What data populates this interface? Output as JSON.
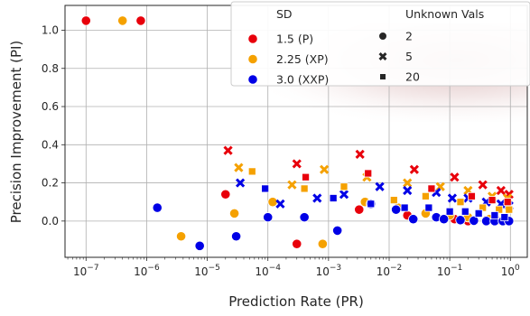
{
  "chart_data": {
    "type": "scatter",
    "xlabel": "Prediction Rate (PR)",
    "ylabel": "Precision Improvement (PI)",
    "xscale": "log",
    "xlim": [
      4.5e-08,
      1.9
    ],
    "ylim": [
      -0.19,
      1.13
    ],
    "x_ticks": [
      {
        "value": 1e-07,
        "base": "10",
        "exp": "−7"
      },
      {
        "value": 1e-06,
        "base": "10",
        "exp": "−6"
      },
      {
        "value": 1e-05,
        "base": "10",
        "exp": "−5"
      },
      {
        "value": 0.0001,
        "base": "10",
        "exp": "−4"
      },
      {
        "value": 0.001,
        "base": "10",
        "exp": "−3"
      },
      {
        "value": 0.01,
        "base": "10",
        "exp": "−2"
      },
      {
        "value": 0.1,
        "base": "10",
        "exp": "−1"
      },
      {
        "value": 1,
        "base": "10",
        "exp": "0"
      }
    ],
    "y_ticks": [
      {
        "value": 0.0,
        "label": "0.0"
      },
      {
        "value": 0.2,
        "label": "0.2"
      },
      {
        "value": 0.4,
        "label": "0.4"
      },
      {
        "value": 0.6,
        "label": "0.6"
      },
      {
        "value": 0.8,
        "label": "0.8"
      },
      {
        "value": 1.0,
        "label": "1.0"
      }
    ],
    "grid": true,
    "legend": {
      "placement": "top-right",
      "hue_title": "SD",
      "style_title": "Unknown Vals",
      "hue_entries": [
        {
          "label": "1.5 (P)",
          "color": "#e8000b"
        },
        {
          "label": "2.25 (XP)",
          "color": "#f5a100"
        },
        {
          "label": "3.0 (XXP)",
          "color": "#0000e6"
        }
      ],
      "style_entries": [
        {
          "label": "2",
          "marker": "circle"
        },
        {
          "label": "5",
          "marker": "x"
        },
        {
          "label": "20",
          "marker": "square"
        }
      ]
    },
    "series": [
      {
        "sd": "1.5 (P)",
        "unknown": "2",
        "color": "#e8000b",
        "marker": "circle",
        "points": [
          [
            1e-07,
            1.05
          ],
          [
            8e-07,
            1.05
          ],
          [
            2e-05,
            0.14
          ],
          [
            0.0003,
            -0.12
          ],
          [
            0.0032,
            0.06
          ],
          [
            0.02,
            0.03
          ],
          [
            0.06,
            0.02
          ],
          [
            0.12,
            0.01
          ],
          [
            0.2,
            0.0
          ],
          [
            0.4,
            0.005
          ],
          [
            0.6,
            0.003
          ],
          [
            0.85,
            0.002
          ]
        ]
      },
      {
        "sd": "2.25 (XP)",
        "unknown": "2",
        "color": "#f5a100",
        "marker": "circle",
        "points": [
          [
            4e-07,
            1.05
          ],
          [
            3.7e-06,
            -0.08
          ],
          [
            2.8e-05,
            0.04
          ],
          [
            0.00012,
            0.1
          ],
          [
            0.0008,
            -0.12
          ],
          [
            0.004,
            0.1
          ],
          [
            0.014,
            0.07
          ],
          [
            0.04,
            0.04
          ],
          [
            0.1,
            0.03
          ],
          [
            0.2,
            0.02
          ],
          [
            0.45,
            0.01
          ],
          [
            0.75,
            0.005
          ]
        ]
      },
      {
        "sd": "3.0 (XXP)",
        "unknown": "2",
        "color": "#0000e6",
        "marker": "circle",
        "points": [
          [
            1.5e-06,
            0.07
          ],
          [
            7.5e-06,
            -0.13
          ],
          [
            3e-05,
            -0.08
          ],
          [
            0.0001,
            0.02
          ],
          [
            0.0004,
            0.02
          ],
          [
            0.0014,
            -0.05
          ],
          [
            0.005,
            0.09
          ],
          [
            0.013,
            0.06
          ],
          [
            0.025,
            0.01
          ],
          [
            0.06,
            0.02
          ],
          [
            0.08,
            0.01
          ],
          [
            0.15,
            0.005
          ],
          [
            0.25,
            0.002
          ],
          [
            0.4,
            0.0
          ],
          [
            0.55,
            0.0
          ],
          [
            0.75,
            0.0
          ],
          [
            0.95,
            0.0
          ]
        ]
      },
      {
        "sd": "1.5 (P)",
        "unknown": "5",
        "color": "#e8000b",
        "marker": "x",
        "points": [
          [
            2.2e-05,
            0.37
          ],
          [
            0.0003,
            0.3
          ],
          [
            0.0033,
            0.35
          ],
          [
            0.026,
            0.27
          ],
          [
            0.12,
            0.23
          ],
          [
            0.35,
            0.19
          ],
          [
            0.7,
            0.16
          ],
          [
            0.95,
            0.14
          ]
        ]
      },
      {
        "sd": "2.25 (XP)",
        "unknown": "5",
        "color": "#f5a100",
        "marker": "x",
        "points": [
          [
            3.3e-05,
            0.28
          ],
          [
            0.00025,
            0.19
          ],
          [
            0.00085,
            0.27
          ],
          [
            0.0043,
            0.23
          ],
          [
            0.02,
            0.2
          ],
          [
            0.07,
            0.18
          ],
          [
            0.2,
            0.16
          ],
          [
            0.5,
            0.13
          ],
          [
            0.9,
            0.12
          ]
        ]
      },
      {
        "sd": "3.0 (XXP)",
        "unknown": "5",
        "color": "#0000e6",
        "marker": "x",
        "points": [
          [
            3.5e-05,
            0.2
          ],
          [
            0.00016,
            0.09
          ],
          [
            0.00065,
            0.12
          ],
          [
            0.0018,
            0.14
          ],
          [
            0.007,
            0.18
          ],
          [
            0.02,
            0.16
          ],
          [
            0.06,
            0.15
          ],
          [
            0.11,
            0.12
          ],
          [
            0.2,
            0.12
          ],
          [
            0.4,
            0.1
          ],
          [
            0.7,
            0.09
          ],
          [
            0.95,
            0.08
          ]
        ]
      },
      {
        "sd": "1.5 (P)",
        "unknown": "20",
        "color": "#e8000b",
        "marker": "square",
        "points": [
          [
            0.00042,
            0.23
          ],
          [
            0.0045,
            0.25
          ],
          [
            0.05,
            0.17
          ],
          [
            0.23,
            0.13
          ],
          [
            0.5,
            0.11
          ],
          [
            0.9,
            0.1
          ]
        ]
      },
      {
        "sd": "2.25 (XP)",
        "unknown": "20",
        "color": "#f5a100",
        "marker": "square",
        "points": [
          [
            5.5e-05,
            0.26
          ],
          [
            0.0004,
            0.17
          ],
          [
            0.0018,
            0.18
          ],
          [
            0.012,
            0.11
          ],
          [
            0.04,
            0.13
          ],
          [
            0.15,
            0.1
          ],
          [
            0.35,
            0.07
          ],
          [
            0.65,
            0.06
          ],
          [
            0.95,
            0.06
          ]
        ]
      },
      {
        "sd": "3.0 (XXP)",
        "unknown": "20",
        "color": "#0000e6",
        "marker": "square",
        "points": [
          [
            9e-05,
            0.17
          ],
          [
            0.0012,
            0.12
          ],
          [
            0.005,
            0.09
          ],
          [
            0.018,
            0.07
          ],
          [
            0.045,
            0.07
          ],
          [
            0.1,
            0.05
          ],
          [
            0.18,
            0.05
          ],
          [
            0.3,
            0.04
          ],
          [
            0.55,
            0.03
          ],
          [
            0.8,
            0.02
          ]
        ]
      }
    ]
  }
}
